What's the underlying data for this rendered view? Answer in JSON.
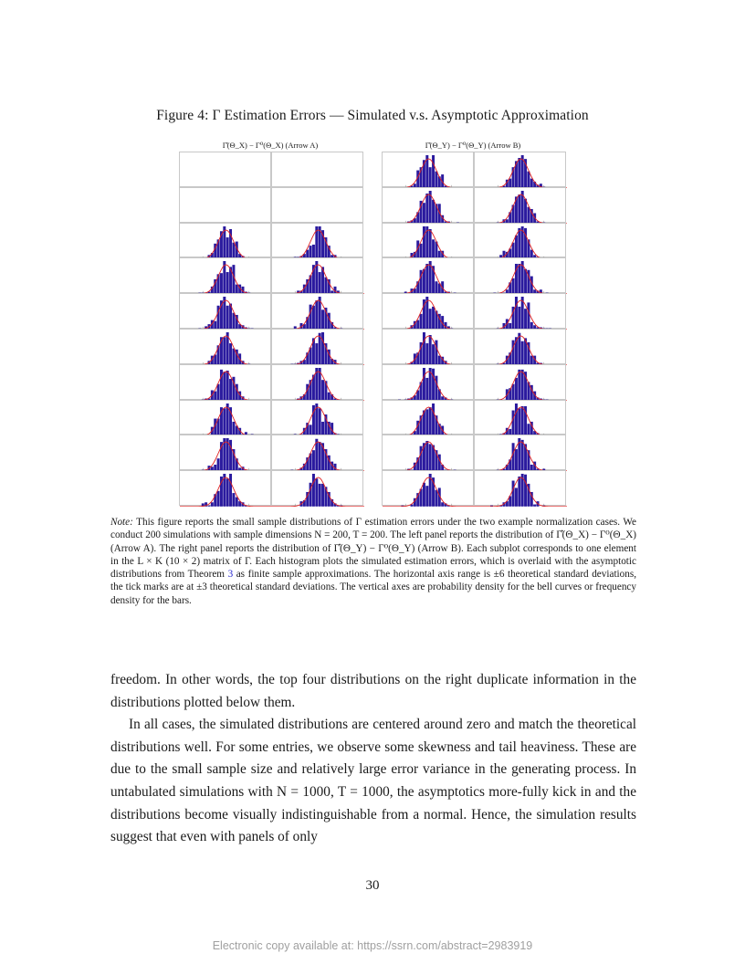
{
  "figure": {
    "title": "Figure 4: Γ Estimation Errors — Simulated v.s. Asymptotic Approximation",
    "left_panel_label": "Γ̂(Θ_X) − Γ⁰(Θ_X) (Arrow A)",
    "right_panel_label": "Γ̂(Θ_Y) − Γ⁰(Θ_Y) (Arrow B)",
    "left_panel": {
      "rows": 10,
      "cols": 2,
      "empty_rows": 2
    },
    "right_panel": {
      "rows": 10,
      "cols": 2,
      "empty_rows": 0
    },
    "bar_color": "#2a1a9e",
    "curve_color": "#e02020"
  },
  "note": {
    "lead": "Note:",
    "s1": " This figure reports the small sample distributions of Γ estimation errors under the two example normalization cases. We conduct 200 simulations with sample dimensions N = 200, T = 200. The left panel reports the distribution of Γ̂(Θ_X) − Γ⁰(Θ_X) (Arrow A). The right panel reports the distribution of Γ̂(Θ_Y) − Γ⁰(Θ_Y) (Arrow B). Each subplot corresponds to one element in the L × K (10 × 2) matrix of Γ. Each histogram plots the simulated estimation errors, which is overlaid with the asymptotic distributions from Theorem ",
    "ref": "3",
    "s2": " as finite sample approximations. The horizontal axis range is ±6 theoretical standard deviations, the tick marks are at ±3 theoretical standard deviations. The vertical axes are probability density for the bell curves or frequency density for the bars."
  },
  "body": {
    "p1": "freedom. In other words, the top four distributions on the right duplicate information in the distributions plotted below them.",
    "p2": "In all cases, the simulated distributions are centered around zero and match the theoretical distributions well. For some entries, we observe some skewness and tail heaviness. These are due to the small sample size and relatively large error variance in the generating process. In untabulated simulations with N = 1000, T = 1000, the asymptotics more-fully kick in and the distributions become visually indistinguishable from a normal. Hence, the simulation results suggest that even with panels of only"
  },
  "page_number": "30",
  "footer": "Electronic copy available at: https://ssrn.com/abstract=2983919"
}
